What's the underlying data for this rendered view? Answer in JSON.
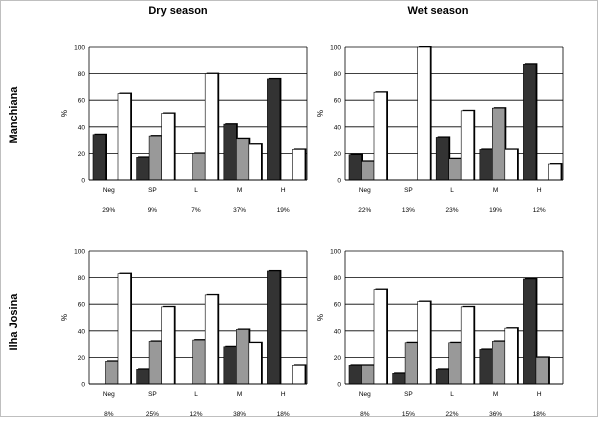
{
  "columns": [
    "Dry season",
    "Wet season"
  ],
  "rows": [
    "Manchiana",
    "Ilha Josina"
  ],
  "colors": {
    "series1": "#333333",
    "series2": "#999999",
    "series3": "#ffffff",
    "grid": "#000000"
  },
  "chart_data": [
    {
      "type": "bar",
      "ylabel": "%",
      "ylim": [
        0,
        100
      ],
      "yticks": [
        "0",
        "20",
        "40",
        "60",
        "80",
        "100"
      ],
      "categories": [
        "Neg",
        "SP",
        "L",
        "M",
        "H"
      ],
      "bottom_labels": [
        "29%",
        "9%",
        "7%",
        "37%",
        "19%"
      ],
      "series": [
        {
          "values": [
            34,
            17,
            0,
            42,
            76
          ]
        },
        {
          "values": [
            0,
            33,
            20,
            31,
            0
          ]
        },
        {
          "values": [
            65,
            50,
            80,
            27,
            23
          ]
        }
      ]
    },
    {
      "type": "bar",
      "ylabel": "%",
      "ylim": [
        0,
        100
      ],
      "yticks": [
        "0",
        "20",
        "40",
        "60",
        "80",
        "100"
      ],
      "categories": [
        "Neg",
        "SP",
        "L",
        "M",
        "H"
      ],
      "bottom_labels": [
        "22%",
        "13%",
        "23%",
        "19%",
        "12%"
      ],
      "series": [
        {
          "values": [
            19,
            0,
            32,
            23,
            87
          ]
        },
        {
          "values": [
            14,
            0,
            16,
            54,
            0
          ]
        },
        {
          "values": [
            66,
            100,
            52,
            23,
            12
          ]
        }
      ]
    },
    {
      "type": "bar",
      "ylabel": "%",
      "ylim": [
        0,
        100
      ],
      "yticks": [
        "0",
        "20",
        "40",
        "60",
        "80",
        "100"
      ],
      "categories": [
        "Neg",
        "SP",
        "L",
        "M",
        "H"
      ],
      "bottom_labels": [
        "8%",
        "25%",
        "12%",
        "38%",
        "18%"
      ],
      "series": [
        {
          "values": [
            0,
            11,
            0,
            28,
            85
          ]
        },
        {
          "values": [
            17,
            32,
            33,
            41,
            0
          ]
        },
        {
          "values": [
            83,
            58,
            67,
            31,
            14
          ]
        }
      ]
    },
    {
      "type": "bar",
      "ylabel": "%",
      "ylim": [
        0,
        100
      ],
      "yticks": [
        "0",
        "20",
        "40",
        "60",
        "80",
        "100"
      ],
      "categories": [
        "Neg",
        "SP",
        "L",
        "M",
        "H"
      ],
      "bottom_labels": [
        "8%",
        "15%",
        "22%",
        "36%",
        "18%"
      ],
      "series": [
        {
          "values": [
            14,
            8,
            11,
            26,
            79
          ]
        },
        {
          "values": [
            14,
            31,
            31,
            32,
            20
          ]
        },
        {
          "values": [
            71,
            62,
            58,
            42,
            0
          ]
        }
      ]
    }
  ]
}
